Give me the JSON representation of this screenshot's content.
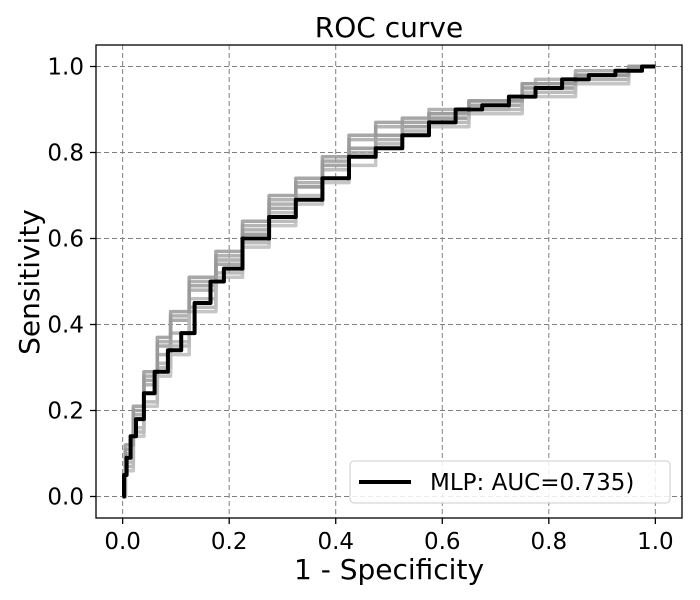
{
  "chart_data": {
    "type": "line",
    "title": "ROC curve",
    "xlabel": "1 - Specificity",
    "ylabel": "Sensitivity",
    "xlim": [
      -0.05,
      1.05
    ],
    "ylim": [
      -0.05,
      1.05
    ],
    "xticks": [
      "0.0",
      "0.2",
      "0.4",
      "0.6",
      "0.8",
      "1.0"
    ],
    "yticks": [
      "0.0",
      "0.2",
      "0.4",
      "0.6",
      "0.8",
      "1.0"
    ],
    "grid": true,
    "legend_position": "lower-right",
    "colors": {
      "main": "#000000",
      "folds": "#a0a0a0"
    },
    "series": [
      {
        "name": "MLP:  AUC=0.735)",
        "color": "#000000",
        "x": [
          0.0,
          0.005,
          0.01,
          0.02,
          0.03,
          0.05,
          0.07,
          0.1,
          0.12,
          0.15,
          0.18,
          0.2,
          0.25,
          0.3,
          0.35,
          0.4,
          0.45,
          0.5,
          0.55,
          0.6,
          0.65,
          0.7,
          0.75,
          0.8,
          0.85,
          0.9,
          0.95,
          1.0
        ],
        "y": [
          0.0,
          0.05,
          0.09,
          0.14,
          0.18,
          0.24,
          0.29,
          0.34,
          0.38,
          0.45,
          0.5,
          0.53,
          0.6,
          0.65,
          0.69,
          0.74,
          0.79,
          0.81,
          0.84,
          0.87,
          0.9,
          0.91,
          0.93,
          0.95,
          0.97,
          0.98,
          0.99,
          1.0
        ]
      },
      {
        "color": "#a8a8a8",
        "x": [
          0.0,
          0.01,
          0.03,
          0.05,
          0.08,
          0.1,
          0.15,
          0.2,
          0.25,
          0.3,
          0.35,
          0.4,
          0.45,
          0.5,
          0.55,
          0.6,
          0.7,
          0.75,
          0.8,
          0.85,
          0.9,
          1.0
        ],
        "y": [
          0.0,
          0.1,
          0.18,
          0.26,
          0.33,
          0.38,
          0.48,
          0.55,
          0.63,
          0.69,
          0.72,
          0.77,
          0.83,
          0.86,
          0.87,
          0.88,
          0.9,
          0.93,
          0.97,
          0.97,
          0.98,
          1.0
        ]
      },
      {
        "color": "#b4b4b4",
        "x": [
          0.0,
          0.01,
          0.03,
          0.05,
          0.08,
          0.1,
          0.15,
          0.2,
          0.25,
          0.3,
          0.35,
          0.4,
          0.45,
          0.5,
          0.55,
          0.6,
          0.7,
          0.8,
          0.9,
          1.0
        ],
        "y": [
          0.0,
          0.08,
          0.16,
          0.24,
          0.31,
          0.36,
          0.46,
          0.55,
          0.61,
          0.66,
          0.7,
          0.76,
          0.81,
          0.84,
          0.86,
          0.89,
          0.92,
          0.95,
          0.97,
          1.0
        ]
      },
      {
        "color": "#9c9c9c",
        "x": [
          0.0,
          0.01,
          0.03,
          0.05,
          0.08,
          0.1,
          0.15,
          0.2,
          0.25,
          0.3,
          0.35,
          0.4,
          0.45,
          0.5,
          0.55,
          0.6,
          0.7,
          0.8,
          0.9,
          1.0
        ],
        "y": [
          0.0,
          0.11,
          0.2,
          0.27,
          0.35,
          0.41,
          0.49,
          0.54,
          0.61,
          0.67,
          0.72,
          0.78,
          0.81,
          0.84,
          0.86,
          0.88,
          0.91,
          0.95,
          0.98,
          1.0
        ]
      },
      {
        "color": "#b0b0b0",
        "x": [
          0.0,
          0.01,
          0.03,
          0.05,
          0.08,
          0.1,
          0.15,
          0.2,
          0.25,
          0.3,
          0.35,
          0.4,
          0.45,
          0.5,
          0.55,
          0.6,
          0.7,
          0.8,
          0.9,
          1.0
        ],
        "y": [
          0.0,
          0.07,
          0.15,
          0.22,
          0.3,
          0.35,
          0.44,
          0.52,
          0.59,
          0.64,
          0.69,
          0.74,
          0.79,
          0.82,
          0.85,
          0.87,
          0.9,
          0.94,
          0.97,
          1.0
        ]
      },
      {
        "color": "#a4a4a4",
        "x": [
          0.0,
          0.01,
          0.03,
          0.05,
          0.08,
          0.1,
          0.15,
          0.2,
          0.25,
          0.3,
          0.35,
          0.4,
          0.45,
          0.5,
          0.55,
          0.6,
          0.7,
          0.8,
          0.9,
          1.0
        ],
        "y": [
          0.0,
          0.09,
          0.19,
          0.28,
          0.36,
          0.42,
          0.5,
          0.56,
          0.62,
          0.68,
          0.73,
          0.77,
          0.8,
          0.83,
          0.87,
          0.9,
          0.92,
          0.96,
          0.99,
          1.0
        ]
      },
      {
        "color": "#bcbcbc",
        "x": [
          0.0,
          0.01,
          0.03,
          0.05,
          0.08,
          0.1,
          0.15,
          0.2,
          0.25,
          0.3,
          0.35,
          0.4,
          0.45,
          0.5,
          0.55,
          0.6,
          0.7,
          0.8,
          0.9,
          1.0
        ],
        "y": [
          0.0,
          0.06,
          0.14,
          0.21,
          0.28,
          0.33,
          0.43,
          0.51,
          0.58,
          0.63,
          0.68,
          0.73,
          0.77,
          0.81,
          0.84,
          0.86,
          0.89,
          0.93,
          0.96,
          1.0
        ]
      },
      {
        "color": "#989898",
        "x": [
          0.0,
          0.01,
          0.03,
          0.05,
          0.08,
          0.1,
          0.15,
          0.2,
          0.25,
          0.3,
          0.35,
          0.4,
          0.45,
          0.5,
          0.55,
          0.6,
          0.7,
          0.8,
          0.9,
          1.0
        ],
        "y": [
          0.0,
          0.12,
          0.21,
          0.29,
          0.37,
          0.43,
          0.51,
          0.57,
          0.64,
          0.7,
          0.74,
          0.79,
          0.84,
          0.87,
          0.88,
          0.89,
          0.92,
          0.96,
          0.98,
          1.0
        ]
      }
    ]
  }
}
